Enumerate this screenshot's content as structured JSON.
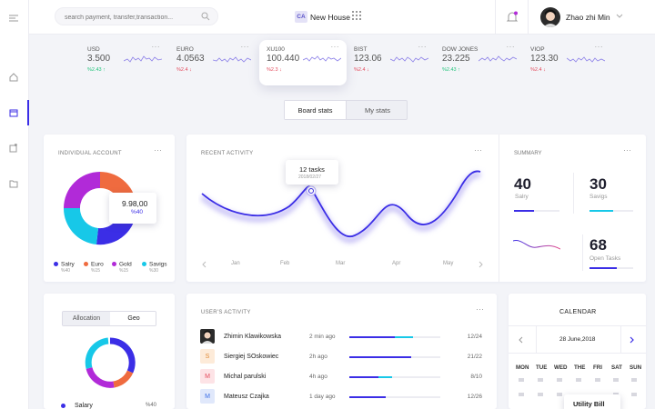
{
  "colors": {
    "accent": "#3b2ee6",
    "cyan": "#17c8e8",
    "purple": "#b12ad8",
    "orange": "#ef6b3f",
    "up": "#22c47b",
    "down": "#e44a5c"
  },
  "header": {
    "search_placeholder": "search payment, transfer,transaction...",
    "workspace_badge": "CA",
    "workspace_name": "New House",
    "user_name": "Zhao zhi Min"
  },
  "tickers": [
    {
      "name": "USD",
      "value": "3.500",
      "change": "%2.43 ↑",
      "trend": "up"
    },
    {
      "name": "EURO",
      "value": "4.0563",
      "change": "%2.4 ↓",
      "trend": "down"
    },
    {
      "name": "XU100",
      "value": "100.440",
      "change": "%2.3 ↓",
      "trend": "down"
    },
    {
      "name": "BIST",
      "value": "123.06",
      "change": "%2.4 ↓",
      "trend": "down"
    },
    {
      "name": "DOW JONES",
      "value": "23.225",
      "change": "%2.43 ↑",
      "trend": "up"
    },
    {
      "name": "VIOP",
      "value": "123.30",
      "change": "%2.4 ↓",
      "trend": "down"
    }
  ],
  "stats_toggle": {
    "board": "Board stats",
    "my": "My stats"
  },
  "individual_account": {
    "title": "INDIVIDUAL ACCOUNT",
    "tooltip_value": "9.98,00",
    "tooltip_pct": "%40",
    "legend": [
      {
        "label": "Salry",
        "pct": "%40",
        "color": "#3b2ee6"
      },
      {
        "label": "Euro",
        "pct": "%15",
        "color": "#ef6b3f"
      },
      {
        "label": "Gold",
        "pct": "%15",
        "color": "#b12ad8"
      },
      {
        "label": "Savigs",
        "pct": "%30",
        "color": "#17c8e8"
      }
    ]
  },
  "recent_activity": {
    "title": "RECENT ACTIVITY",
    "tooltip_title": "12 tasks",
    "tooltip_date": "2018/02/27",
    "months": [
      "Jan",
      "Feb",
      "Mar",
      "Apr",
      "May"
    ]
  },
  "summary": {
    "title": "SUMMARY",
    "salary_value": "40",
    "salary_label": "Salry",
    "savings_value": "30",
    "savings_label": "Savigs",
    "tasks_value": "68",
    "tasks_label": "Open Tasks"
  },
  "allocation": {
    "tab_allocation": "Allocation",
    "tab_geo": "Geo",
    "first_item_label": "Salary",
    "first_item_pct": "%40"
  },
  "user_activity": {
    "title": "USER'S ACTIVITY",
    "rows": [
      {
        "initial": "",
        "name": "Zhimin Klawikowska",
        "time": "2 min ago",
        "ratio": "12/24",
        "avatar_bg": "#2b2b2b"
      },
      {
        "initial": "S",
        "name": "Siergiej SOskowiec",
        "time": "2h ago",
        "ratio": "21/22",
        "avatar_bg": "#fdebd9"
      },
      {
        "initial": "M",
        "name": "Michal parulski",
        "time": "4h ago",
        "ratio": "8/10",
        "avatar_bg": "#fde3e6"
      },
      {
        "initial": "M",
        "name": "Mateusz Czajka",
        "time": "1 day ago",
        "ratio": "12/26",
        "avatar_bg": "#e0e8fb"
      }
    ]
  },
  "calendar": {
    "title": "CALENDAR",
    "date": "28 June,2018",
    "weekdays": [
      "MON",
      "TUE",
      "WED",
      "THE",
      "FRI",
      "SAT",
      "SUN"
    ],
    "event": "Utility Bill"
  }
}
